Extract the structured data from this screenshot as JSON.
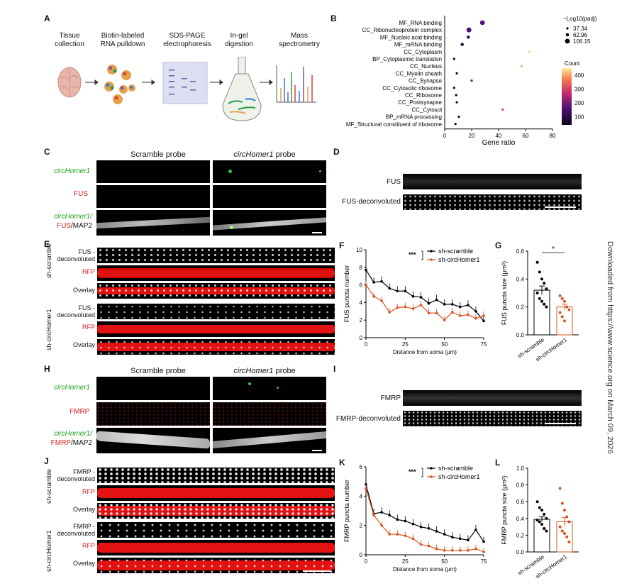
{
  "panel_letters": {
    "a": "A",
    "b": "B",
    "c": "C",
    "d": "D",
    "e": "E",
    "f": "F",
    "g": "G",
    "h": "H",
    "i": "I",
    "j": "J",
    "k": "K",
    "l": "L"
  },
  "panelA": {
    "steps": [
      "Tissue collection",
      "Biotin-labeled RNA pulldown",
      "SDS-PAGE electrophoresis",
      "In-gel digestion",
      "Mass spectrometry"
    ]
  },
  "panelB": {
    "size_legend_title": "−Log10(padj)",
    "size_values": [
      "37.34",
      "62.96",
      "106.15"
    ],
    "color_legend_title": "Count",
    "color_ticks": [
      "400",
      "300",
      "200",
      "100"
    ]
  },
  "panelC": {
    "col1": "Scramble probe",
    "col2_italic": "circHomer1",
    "col2_rest": " probe",
    "row1": "circHomer1",
    "row2": "FUS",
    "row3a": "circHomer1/",
    "row3b": "FUS",
    "row3c": "/MAP2"
  },
  "panelD": {
    "row1": "FUS",
    "row2": "FUS-deconvoluted"
  },
  "panelE": {
    "group1": "sh-scramble",
    "group2": "sh-circHomer1",
    "row1": "FUS -deconvoluted",
    "row2": "RFP",
    "row3": "Overlay"
  },
  "panelH": {
    "col1": "Scramble probe",
    "col2_italic": "circHomer1",
    "col2_rest": " probe",
    "row1": "circHomer1",
    "row2": "FMRP",
    "row3a": "circHomer1/",
    "row3b": "FMRP",
    "row3c": "/MAP2"
  },
  "panelI": {
    "row1": "FMRP",
    "row2": "FMRP-deconvoluted"
  },
  "panelJ": {
    "group1": "sh-scramble",
    "group2": "sh-circHomer1",
    "row1": "FMRP -deconvoluted",
    "row2": "RFP",
    "row3": "Overlay"
  },
  "watermark": "Downloaded from https://www.science.org on March 09, 2026",
  "chart_data": [
    {
      "id": "B",
      "type": "scatter",
      "title": "",
      "xlabel": "Gene ratio",
      "ylabel": "",
      "xlim": [
        0,
        80
      ],
      "xticks": [
        0,
        20,
        40,
        60,
        80
      ],
      "categories": [
        "MF_RNA binding",
        "CC_Ribonucleoprotein complex",
        "MF_Nucleic acid binding",
        "MF_mRNA binding",
        "CC_Cytoplasm",
        "BP_Cytoplasmic translation",
        "CC_Nucleus",
        "CC_Myelin sheath",
        "CC_Synapse",
        "CC_Cytosolic ribosome",
        "CC_Ribosome",
        "CC_Postsynapse",
        "CC_Cytosol",
        "BP_mRNA processing",
        "MF_Structural constituent of ribosome"
      ],
      "x": [
        28,
        18,
        17.5,
        13,
        63,
        7,
        57,
        9,
        20,
        7,
        8.5,
        9,
        43,
        10.5,
        8
      ],
      "neg_log10_padj": [
        106.15,
        106.15,
        62.96,
        62.96,
        37.34,
        37.34,
        37.34,
        37.34,
        37.34,
        37.34,
        37.34,
        37.34,
        37.34,
        37.34,
        37.34
      ],
      "count": [
        170,
        150,
        130,
        100,
        430,
        40,
        400,
        40,
        170,
        40,
        40,
        40,
        300,
        40,
        40
      ],
      "color_range": [
        40,
        450
      ]
    },
    {
      "id": "F",
      "type": "line",
      "xlabel": "Distance from soma (μm)",
      "ylabel": "FUS puncta number",
      "ylim": [
        0,
        10
      ],
      "yticks": [
        0,
        2,
        4,
        6,
        8,
        10
      ],
      "xticks": [
        0,
        25,
        50,
        75
      ],
      "x": [
        0,
        5,
        10,
        15,
        20,
        25,
        30,
        35,
        40,
        45,
        50,
        55,
        60,
        65,
        70,
        75
      ],
      "series": [
        {
          "name": "sh-scramble",
          "color": "#000000",
          "values": [
            7.7,
            6.3,
            6.4,
            5.6,
            5.3,
            5.3,
            4.7,
            4.6,
            3.9,
            4.3,
            3.8,
            3.8,
            3.5,
            3.7,
            3.0,
            1.9
          ]
        },
        {
          "name": "sh-circHomer1",
          "color": "#d9541e",
          "values": [
            6.0,
            4.7,
            4.2,
            2.9,
            3.4,
            3.5,
            3.3,
            3.7,
            2.8,
            2.8,
            2.0,
            2.9,
            2.5,
            2.6,
            2.2,
            2.5
          ]
        }
      ],
      "significance": "***"
    },
    {
      "id": "G",
      "type": "bar",
      "ylabel": "FUS puncta size (μm²)",
      "ylim": [
        0,
        0.6
      ],
      "yticks": [
        "0.0",
        "0.2",
        "0.4",
        "0.6"
      ],
      "categories": [
        "sh-scramble",
        "sh-circHomer1"
      ],
      "values": [
        0.32,
        0.2
      ],
      "errors": [
        0.03,
        0.02
      ],
      "points": [
        [
          0.52,
          0.45,
          0.4,
          0.37,
          0.33,
          0.3,
          0.26,
          0.24,
          0.22,
          0.2
        ],
        [
          0.28,
          0.26,
          0.24,
          0.2,
          0.18,
          0.16,
          0.13,
          0.1
        ]
      ],
      "colors": [
        "#000000",
        "#d9541e"
      ],
      "significance": "*"
    },
    {
      "id": "K",
      "type": "line",
      "xlabel": "Distance from soma (μm)",
      "ylabel": "FMRP puncta number",
      "ylim": [
        0,
        6
      ],
      "yticks": [
        0,
        2,
        4,
        6
      ],
      "xticks": [
        0,
        25,
        50,
        75
      ],
      "x": [
        0,
        5,
        10,
        15,
        20,
        25,
        30,
        35,
        40,
        45,
        50,
        55,
        60,
        65,
        70,
        75
      ],
      "series": [
        {
          "name": "sh-scramble",
          "color": "#000000",
          "values": [
            4.8,
            2.8,
            2.9,
            2.7,
            2.4,
            2.3,
            2.1,
            1.9,
            1.8,
            1.6,
            1.4,
            1.2,
            1.1,
            1.0,
            1.7,
            0.9
          ]
        },
        {
          "name": "sh-circHomer1",
          "color": "#d9541e",
          "values": [
            4.5,
            2.7,
            2.0,
            1.4,
            1.4,
            1.3,
            1.1,
            0.7,
            0.6,
            0.4,
            0.3,
            0.3,
            0.3,
            0.3,
            0.4,
            0.2
          ]
        }
      ],
      "significance": "***"
    },
    {
      "id": "L",
      "type": "bar",
      "ylabel": "FMRP puncta size (μm²)",
      "ylim": [
        0,
        1.0
      ],
      "yticks": [
        "0.0",
        "0.2",
        "0.4",
        "0.6",
        "0.8",
        "1.0"
      ],
      "categories": [
        "sh-scramble",
        "sh-circHomer1"
      ],
      "values": [
        0.39,
        0.36
      ],
      "errors": [
        0.03,
        0.05
      ],
      "points": [
        [
          0.6,
          0.53,
          0.5,
          0.45,
          0.4,
          0.38,
          0.36,
          0.33,
          0.28,
          0.25
        ],
        [
          0.76,
          0.58,
          0.5,
          0.42,
          0.36,
          0.3,
          0.25,
          0.22,
          0.18,
          0.12
        ]
      ],
      "colors": [
        "#000000",
        "#d9541e"
      ]
    }
  ]
}
